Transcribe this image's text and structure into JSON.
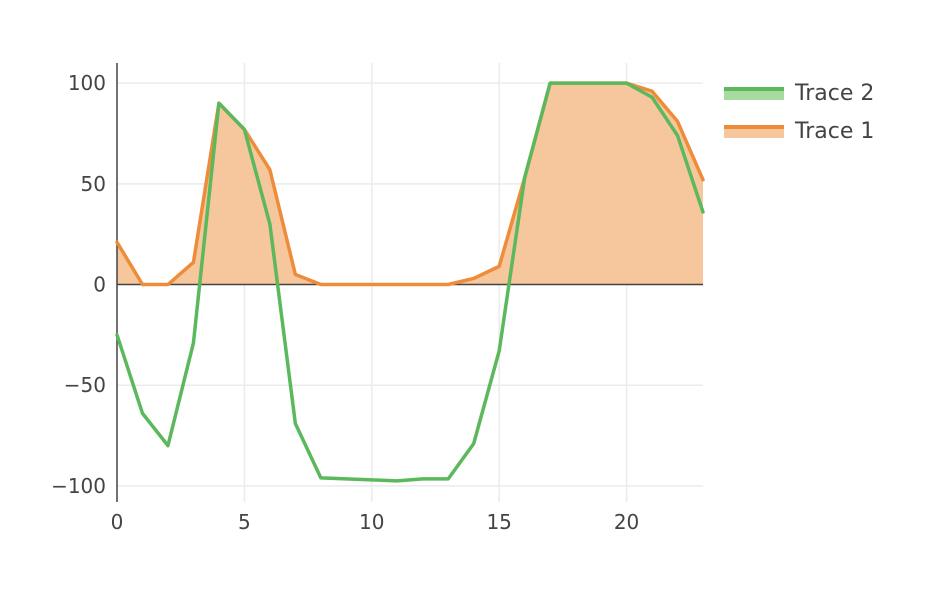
{
  "chart_data": {
    "type": "area",
    "x": [
      0,
      1,
      2,
      3,
      4,
      5,
      6,
      7,
      8,
      9,
      10,
      11,
      12,
      13,
      14,
      15,
      16,
      17,
      18,
      19,
      20,
      21,
      22,
      23
    ],
    "series": [
      {
        "name": "Trace 2",
        "color": "#5cb85c",
        "fill_color": "#a8dba0",
        "fill": false,
        "values": [
          -25,
          -64,
          -80,
          -29,
          90,
          77,
          30,
          -69,
          -96,
          -96.5,
          -97,
          -97.5,
          -96.5,
          -96.5,
          -79,
          -33,
          53,
          100,
          100,
          100,
          100,
          93,
          74,
          36
        ]
      },
      {
        "name": "Trace 1",
        "color": "#ee8c3a",
        "fill_color": "#f6c79c",
        "fill": true,
        "values": [
          21,
          0,
          0,
          11,
          90,
          77,
          57,
          5,
          0,
          0,
          0,
          0,
          0,
          0,
          3,
          9,
          53,
          100,
          100,
          100,
          100,
          96,
          81,
          52
        ]
      }
    ],
    "xlim": [
      0,
      23
    ],
    "ylim": [
      -108,
      110
    ],
    "x_ticks": [
      0,
      5,
      10,
      15,
      20
    ],
    "y_ticks": [
      -100,
      -50,
      0,
      50,
      100
    ],
    "x_tick_labels": [
      "0",
      "5",
      "10",
      "15",
      "20"
    ],
    "y_tick_labels": [
      "−100",
      "−50",
      "0",
      "50",
      "100"
    ],
    "grid": true,
    "legend_position": "top-right",
    "title": "",
    "xlabel": "",
    "ylabel": ""
  },
  "legend": [
    {
      "label": "Trace 2"
    },
    {
      "label": "Trace 1"
    }
  ]
}
